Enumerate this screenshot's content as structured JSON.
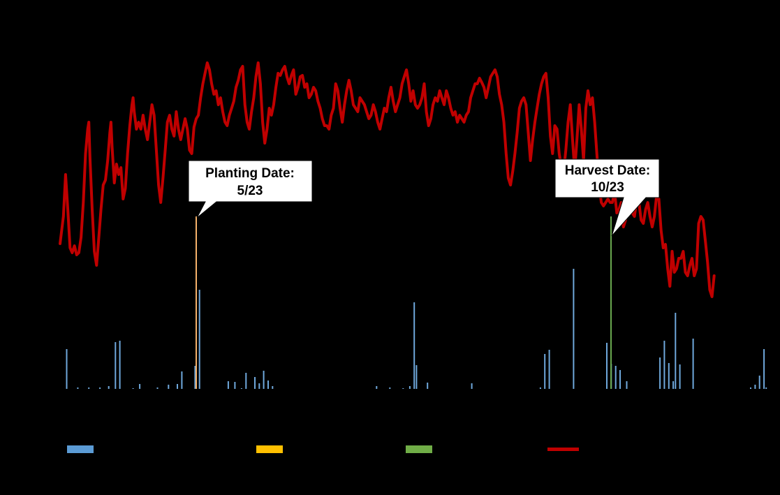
{
  "chart_data": {
    "type": "bar+line",
    "title": "",
    "xlabel": "",
    "ylabel": "",
    "colors": {
      "precipitation": "#6fa8dc",
      "planting": "#f6b26b",
      "harvest": "#6aa84f",
      "temperature": "#c00000",
      "legend_planting": "#ffc000",
      "legend_harvest": "#70ad47",
      "legend_precip": "#5b9bd5"
    },
    "series": [
      {
        "type": "bar",
        "color": "#6fa8dc"
      },
      {
        "type": "bar",
        "color": "#ffc000"
      },
      {
        "type": "bar",
        "color": "#70ad47"
      },
      {
        "type": "line",
        "color": "#c00000"
      }
    ],
    "planting": {
      "label": "Planting Date:",
      "date": "5/23"
    },
    "harvest": {
      "label": "Harvest Date:",
      "date": "10/23"
    },
    "temperature_anchors": [
      [
        0,
        349
      ],
      [
        3,
        310
      ],
      [
        5,
        250
      ],
      [
        7,
        300
      ],
      [
        9,
        355
      ],
      [
        11,
        362
      ],
      [
        13,
        352
      ],
      [
        15,
        365
      ],
      [
        17,
        362
      ],
      [
        19,
        340
      ],
      [
        21,
        290
      ],
      [
        23,
        220
      ],
      [
        25,
        185
      ],
      [
        26,
        175
      ],
      [
        27,
        225
      ],
      [
        29,
        300
      ],
      [
        31,
        360
      ],
      [
        33,
        380
      ],
      [
        35,
        340
      ],
      [
        37,
        300
      ],
      [
        39,
        265
      ],
      [
        41,
        258
      ],
      [
        43,
        230
      ],
      [
        45,
        190
      ],
      [
        46,
        175
      ],
      [
        47,
        210
      ],
      [
        49,
        262
      ],
      [
        51,
        235
      ],
      [
        53,
        250
      ],
      [
        55,
        240
      ],
      [
        57,
        285
      ],
      [
        59,
        270
      ],
      [
        61,
        220
      ],
      [
        63,
        180
      ],
      [
        65,
        150
      ],
      [
        66,
        140
      ],
      [
        67,
        160
      ],
      [
        69,
        185
      ],
      [
        71,
        175
      ],
      [
        73,
        185
      ],
      [
        75,
        165
      ],
      [
        77,
        185
      ],
      [
        79,
        200
      ],
      [
        81,
        175
      ],
      [
        83,
        150
      ],
      [
        85,
        165
      ],
      [
        87,
        215
      ],
      [
        89,
        265
      ],
      [
        91,
        290
      ],
      [
        93,
        255
      ],
      [
        95,
        215
      ],
      [
        97,
        175
      ],
      [
        99,
        165
      ],
      [
        101,
        185
      ],
      [
        103,
        195
      ],
      [
        105,
        160
      ],
      [
        107,
        185
      ],
      [
        109,
        200
      ],
      [
        111,
        185
      ],
      [
        113,
        170
      ],
      [
        115,
        185
      ],
      [
        117,
        215
      ],
      [
        119,
        220
      ],
      [
        121,
        182
      ],
      [
        123,
        170
      ],
      [
        125,
        165
      ],
      [
        127,
        140
      ],
      [
        129,
        120
      ],
      [
        131,
        105
      ],
      [
        133,
        90
      ],
      [
        135,
        100
      ],
      [
        137,
        120
      ],
      [
        139,
        135
      ],
      [
        141,
        130
      ],
      [
        143,
        150
      ],
      [
        145,
        140
      ],
      [
        147,
        160
      ],
      [
        149,
        175
      ],
      [
        151,
        180
      ],
      [
        153,
        165
      ],
      [
        155,
        155
      ],
      [
        157,
        145
      ],
      [
        159,
        125
      ],
      [
        161,
        115
      ],
      [
        163,
        100
      ],
      [
        165,
        95
      ],
      [
        167,
        150
      ],
      [
        169,
        175
      ],
      [
        171,
        185
      ],
      [
        173,
        160
      ],
      [
        175,
        140
      ],
      [
        177,
        110
      ],
      [
        179,
        90
      ],
      [
        181,
        120
      ],
      [
        183,
        175
      ],
      [
        185,
        205
      ],
      [
        187,
        185
      ],
      [
        189,
        155
      ],
      [
        191,
        165
      ],
      [
        193,
        150
      ],
      [
        195,
        125
      ],
      [
        197,
        105
      ],
      [
        199,
        108
      ],
      [
        201,
        100
      ],
      [
        203,
        95
      ],
      [
        205,
        110
      ],
      [
        207,
        120
      ],
      [
        209,
        108
      ],
      [
        211,
        100
      ],
      [
        213,
        135
      ],
      [
        215,
        125
      ],
      [
        217,
        110
      ],
      [
        219,
        108
      ],
      [
        221,
        125
      ],
      [
        223,
        120
      ],
      [
        225,
        140
      ],
      [
        227,
        135
      ],
      [
        229,
        125
      ],
      [
        231,
        130
      ],
      [
        233,
        145
      ],
      [
        235,
        155
      ],
      [
        237,
        170
      ],
      [
        239,
        180
      ],
      [
        241,
        180
      ],
      [
        243,
        185
      ],
      [
        245,
        165
      ],
      [
        247,
        155
      ],
      [
        249,
        120
      ],
      [
        251,
        130
      ],
      [
        253,
        155
      ],
      [
        255,
        175
      ],
      [
        257,
        150
      ],
      [
        259,
        130
      ],
      [
        261,
        115
      ],
      [
        263,
        130
      ],
      [
        265,
        150
      ],
      [
        267,
        155
      ],
      [
        269,
        160
      ],
      [
        271,
        140
      ],
      [
        273,
        145
      ],
      [
        275,
        150
      ],
      [
        277,
        160
      ],
      [
        279,
        170
      ],
      [
        281,
        165
      ],
      [
        283,
        150
      ],
      [
        285,
        160
      ],
      [
        287,
        175
      ],
      [
        289,
        185
      ],
      [
        291,
        170
      ],
      [
        293,
        155
      ],
      [
        295,
        160
      ],
      [
        297,
        140
      ],
      [
        299,
        125
      ],
      [
        301,
        145
      ],
      [
        303,
        160
      ],
      [
        305,
        150
      ],
      [
        307,
        140
      ],
      [
        309,
        120
      ],
      [
        311,
        110
      ],
      [
        313,
        100
      ],
      [
        315,
        120
      ],
      [
        317,
        145
      ],
      [
        319,
        130
      ],
      [
        321,
        150
      ],
      [
        323,
        155
      ],
      [
        325,
        150
      ],
      [
        327,
        140
      ],
      [
        329,
        120
      ],
      [
        331,
        160
      ],
      [
        333,
        180
      ],
      [
        335,
        170
      ],
      [
        337,
        150
      ],
      [
        339,
        140
      ],
      [
        341,
        145
      ],
      [
        343,
        130
      ],
      [
        345,
        140
      ],
      [
        347,
        150
      ],
      [
        349,
        130
      ],
      [
        351,
        140
      ],
      [
        353,
        155
      ],
      [
        355,
        165
      ],
      [
        357,
        160
      ],
      [
        359,
        175
      ],
      [
        361,
        165
      ],
      [
        363,
        170
      ],
      [
        365,
        175
      ],
      [
        367,
        165
      ],
      [
        369,
        160
      ],
      [
        371,
        140
      ],
      [
        373,
        130
      ],
      [
        375,
        120
      ],
      [
        377,
        120
      ],
      [
        379,
        112
      ],
      [
        381,
        118
      ],
      [
        383,
        125
      ],
      [
        385,
        140
      ],
      [
        387,
        125
      ],
      [
        389,
        110
      ],
      [
        391,
        105
      ],
      [
        393,
        100
      ],
      [
        395,
        110
      ],
      [
        397,
        135
      ],
      [
        399,
        150
      ],
      [
        401,
        175
      ],
      [
        403,
        220
      ],
      [
        405,
        255
      ],
      [
        407,
        265
      ],
      [
        409,
        245
      ],
      [
        411,
        220
      ],
      [
        413,
        190
      ],
      [
        415,
        155
      ],
      [
        417,
        145
      ],
      [
        419,
        140
      ],
      [
        421,
        150
      ],
      [
        423,
        190
      ],
      [
        425,
        230
      ],
      [
        427,
        200
      ],
      [
        429,
        175
      ],
      [
        431,
        155
      ],
      [
        433,
        135
      ],
      [
        435,
        120
      ],
      [
        437,
        110
      ],
      [
        439,
        105
      ],
      [
        441,
        140
      ],
      [
        443,
        195
      ],
      [
        445,
        220
      ],
      [
        447,
        180
      ],
      [
        449,
        185
      ],
      [
        451,
        220
      ],
      [
        453,
        240
      ],
      [
        455,
        245
      ],
      [
        457,
        215
      ],
      [
        459,
        175
      ],
      [
        461,
        150
      ],
      [
        463,
        200
      ],
      [
        465,
        245
      ],
      [
        467,
        200
      ],
      [
        469,
        150
      ],
      [
        471,
        185
      ],
      [
        473,
        230
      ],
      [
        475,
        155
      ],
      [
        477,
        130
      ],
      [
        479,
        150
      ],
      [
        481,
        140
      ],
      [
        483,
        175
      ],
      [
        485,
        220
      ],
      [
        487,
        265
      ],
      [
        489,
        290
      ],
      [
        491,
        295
      ],
      [
        493,
        290
      ],
      [
        495,
        285
      ],
      [
        497,
        290
      ],
      [
        499,
        290
      ],
      [
        501,
        275
      ],
      [
        503,
        305
      ],
      [
        505,
        300
      ],
      [
        507,
        290
      ],
      [
        509,
        325
      ],
      [
        511,
        315
      ],
      [
        513,
        270
      ],
      [
        515,
        300
      ],
      [
        517,
        305
      ],
      [
        519,
        310
      ],
      [
        521,
        285
      ],
      [
        523,
        290
      ],
      [
        525,
        315
      ],
      [
        527,
        320
      ],
      [
        529,
        300
      ],
      [
        531,
        290
      ],
      [
        533,
        310
      ],
      [
        535,
        325
      ],
      [
        537,
        310
      ],
      [
        539,
        280
      ],
      [
        541,
        285
      ],
      [
        543,
        330
      ],
      [
        545,
        355
      ],
      [
        547,
        350
      ],
      [
        549,
        385
      ],
      [
        551,
        410
      ],
      [
        553,
        360
      ],
      [
        555,
        390
      ],
      [
        557,
        385
      ],
      [
        559,
        370
      ],
      [
        561,
        370
      ],
      [
        563,
        360
      ],
      [
        565,
        390
      ],
      [
        567,
        395
      ],
      [
        569,
        380
      ],
      [
        571,
        370
      ],
      [
        573,
        395
      ],
      [
        575,
        385
      ],
      [
        577,
        320
      ],
      [
        579,
        310
      ],
      [
        581,
        315
      ],
      [
        583,
        345
      ],
      [
        585,
        375
      ],
      [
        587,
        415
      ],
      [
        589,
        425
      ],
      [
        591,
        395
      ]
    ],
    "precipitation": [
      [
        3,
        500
      ],
      [
        8,
        555
      ],
      [
        13,
        555
      ],
      [
        18,
        555
      ],
      [
        22,
        553
      ],
      [
        25,
        490
      ],
      [
        27,
        488
      ],
      [
        33,
        556
      ],
      [
        36,
        550
      ],
      [
        44,
        555
      ],
      [
        49,
        551
      ],
      [
        53,
        550
      ],
      [
        55,
        532
      ],
      [
        61,
        524
      ],
      [
        63,
        415
      ],
      [
        76,
        546
      ],
      [
        79,
        547
      ],
      [
        82,
        556
      ],
      [
        84,
        534
      ],
      [
        88,
        540
      ],
      [
        90,
        549
      ],
      [
        92,
        531
      ],
      [
        94,
        545
      ],
      [
        96,
        553
      ],
      [
        143,
        553
      ],
      [
        149,
        555
      ],
      [
        155,
        556
      ],
      [
        158,
        553
      ],
      [
        160,
        433
      ],
      [
        161,
        523
      ],
      [
        166,
        548
      ],
      [
        186,
        549
      ],
      [
        217,
        555
      ],
      [
        219,
        507
      ],
      [
        221,
        501
      ],
      [
        232,
        385
      ],
      [
        247,
        491
      ],
      [
        249,
        521
      ],
      [
        251,
        524
      ],
      [
        253,
        530
      ],
      [
        256,
        546
      ],
      [
        271,
        512
      ],
      [
        273,
        488
      ],
      [
        275,
        520
      ],
      [
        277,
        546
      ],
      [
        278,
        448
      ],
      [
        280,
        522
      ],
      [
        286,
        485
      ],
      [
        312,
        555
      ],
      [
        314,
        551
      ],
      [
        316,
        538
      ],
      [
        318,
        500
      ],
      [
        319,
        555
      ],
      [
        338,
        555
      ],
      [
        340,
        493
      ],
      [
        347,
        554
      ],
      [
        350,
        555
      ],
      [
        357,
        533
      ],
      [
        359,
        521
      ],
      [
        361,
        510
      ],
      [
        363,
        533
      ],
      [
        365,
        548
      ],
      [
        367,
        545
      ],
      [
        374,
        551
      ],
      [
        376,
        550
      ],
      [
        392,
        555
      ],
      [
        395,
        555
      ],
      [
        397,
        552
      ],
      [
        400,
        546
      ],
      [
        402,
        498
      ],
      [
        404,
        555
      ],
      [
        406,
        545
      ],
      [
        411,
        541
      ],
      [
        413,
        546
      ],
      [
        414,
        410
      ],
      [
        416,
        546
      ],
      [
        418,
        549
      ],
      [
        421,
        540
      ],
      [
        424,
        551
      ],
      [
        428,
        541
      ],
      [
        430,
        546
      ],
      [
        437,
        552
      ],
      [
        440,
        531
      ],
      [
        446,
        537
      ],
      [
        450,
        536
      ],
      [
        456,
        521
      ],
      [
        458,
        556
      ],
      [
        460,
        473
      ]
    ],
    "legend": [
      {
        "name": "",
        "color": "#5b9bd5"
      },
      {
        "name": "",
        "color": "#ffc000"
      },
      {
        "name": "",
        "color": "#70ad47"
      },
      {
        "name": "",
        "color": "#c00000"
      }
    ]
  }
}
